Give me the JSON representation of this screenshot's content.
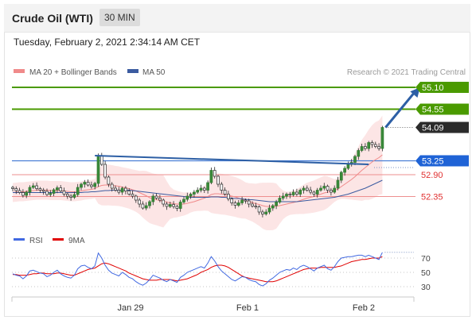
{
  "header": {
    "title": "Crude Oil (WTI)",
    "interval": "30 MIN"
  },
  "datetime": "Tuesday, February 2, 2021 2:34:14 AM CET",
  "legend": {
    "ma20": "MA 20 + Bollinger Bands",
    "ma50": "MA 50"
  },
  "credit": "Research © 2021 Trading Central",
  "colors": {
    "green": "#4a9a00",
    "blue_level": "#1f63d6",
    "red_level": "#e03030",
    "price": "#2a2a2a",
    "ma20": "#f08a8a",
    "ma50": "#3b5ba0",
    "trend": "#2d5fa5",
    "rsi": "#4169e1",
    "rsi_ma": "#e00000"
  },
  "chart_data": [
    {
      "type": "candlestick",
      "x_ticks": [
        "Jan 29",
        "Feb 1",
        "Feb 2"
      ],
      "ylim": [
        51.6,
        55.4
      ],
      "levels": [
        {
          "value": 55.1,
          "label": "55.10",
          "color": "green",
          "style": "flag"
        },
        {
          "value": 54.55,
          "label": "54.55",
          "color": "green",
          "style": "flag"
        },
        {
          "value": 54.09,
          "label": "54.09",
          "color": "dark",
          "style": "flag",
          "note": "last price"
        },
        {
          "value": 53.25,
          "label": "53.25",
          "color": "blue",
          "style": "flag"
        },
        {
          "value": 52.9,
          "label": "52.90",
          "color": "red",
          "style": "text"
        },
        {
          "value": 52.35,
          "label": "52.35",
          "color": "red",
          "style": "text"
        }
      ],
      "close": [
        52.55,
        52.5,
        52.45,
        52.38,
        52.46,
        52.58,
        52.62,
        52.55,
        52.51,
        52.48,
        52.4,
        52.43,
        52.52,
        52.57,
        52.49,
        52.41,
        52.36,
        52.33,
        52.4,
        52.58,
        52.66,
        52.71,
        52.64,
        52.6,
        52.68,
        53.38,
        53.16,
        52.84,
        52.66,
        52.56,
        52.51,
        52.46,
        52.56,
        52.49,
        52.41,
        52.36,
        52.26,
        52.16,
        52.06,
        52.12,
        52.22,
        52.36,
        52.31,
        52.26,
        52.16,
        52.1,
        52.15,
        52.1,
        52.05,
        52.21,
        52.28,
        52.36,
        52.41,
        52.46,
        52.51,
        52.56,
        52.51,
        52.7,
        53.01,
        52.86,
        52.66,
        52.51,
        52.41,
        52.29,
        52.19,
        52.13,
        52.19,
        52.26,
        52.24,
        52.16,
        52.11,
        52.09,
        51.96,
        51.91,
        51.96,
        52.06,
        52.12,
        52.21,
        52.31,
        52.36,
        52.41,
        52.39,
        52.46,
        52.41,
        52.51,
        52.56,
        52.51,
        52.46,
        52.41,
        52.51,
        52.56,
        52.61,
        52.51,
        52.46,
        52.56,
        52.76,
        52.96,
        53.06,
        53.16,
        53.21,
        53.36,
        53.51,
        53.61,
        53.56,
        53.71,
        53.66,
        53.61,
        53.56,
        54.09
      ],
      "ma20": [
        52.45,
        52.46,
        52.47,
        52.47,
        52.48,
        52.49,
        52.5,
        52.51,
        52.51,
        52.51,
        52.51,
        52.5,
        52.5,
        52.5,
        52.5,
        52.49,
        52.48,
        52.47,
        52.47,
        52.48,
        52.49,
        52.51,
        52.52,
        52.53,
        52.55,
        52.6,
        52.63,
        52.64,
        52.64,
        52.63,
        52.62,
        52.61,
        52.59,
        52.57,
        52.55,
        52.52,
        52.49,
        52.45,
        52.41,
        52.37,
        52.32,
        52.29,
        52.27,
        52.25,
        52.23,
        52.21,
        52.19,
        52.17,
        52.16,
        52.16,
        52.16,
        52.18,
        52.2,
        52.22,
        52.25,
        52.28,
        52.31,
        52.35,
        52.4,
        52.42,
        52.42,
        52.41,
        52.4,
        52.38,
        52.36,
        52.34,
        52.31,
        52.28,
        52.25,
        52.22,
        52.2,
        52.17,
        52.15,
        52.12,
        52.1,
        52.1,
        52.1,
        52.11,
        52.12,
        52.14,
        52.16,
        52.18,
        52.2,
        52.22,
        52.25,
        52.28,
        52.31,
        52.33,
        52.35,
        52.38,
        52.41,
        52.44,
        52.46,
        52.48,
        52.5,
        52.54,
        52.6,
        52.66,
        52.72,
        52.78,
        52.85,
        52.93,
        53.01,
        53.08,
        53.15,
        53.22,
        53.28,
        53.33,
        53.4
      ],
      "ma50": [
        52.45,
        52.45,
        52.45,
        52.45,
        52.45,
        52.45,
        52.45,
        52.45,
        52.45,
        52.45,
        52.45,
        52.45,
        52.45,
        52.45,
        52.45,
        52.45,
        52.45,
        52.45,
        52.45,
        52.45,
        52.45,
        52.46,
        52.46,
        52.47,
        52.47,
        52.48,
        52.49,
        52.5,
        52.5,
        52.51,
        52.51,
        52.51,
        52.51,
        52.51,
        52.51,
        52.5,
        52.49,
        52.48,
        52.47,
        52.46,
        52.45,
        52.44,
        52.43,
        52.42,
        52.41,
        52.4,
        52.39,
        52.38,
        52.37,
        52.36,
        52.35,
        52.34,
        52.33,
        52.33,
        52.33,
        52.33,
        52.33,
        52.33,
        52.34,
        52.34,
        52.34,
        52.33,
        52.33,
        52.32,
        52.31,
        52.3,
        52.3,
        52.29,
        52.28,
        52.27,
        52.27,
        52.26,
        52.25,
        52.24,
        52.23,
        52.22,
        52.22,
        52.22,
        52.22,
        52.22,
        52.22,
        52.22,
        52.22,
        52.22,
        52.23,
        52.24,
        52.25,
        52.26,
        52.27,
        52.28,
        52.29,
        52.3,
        52.31,
        52.32,
        52.33,
        52.35,
        52.37,
        52.39,
        52.41,
        52.44,
        52.47,
        52.5,
        52.53,
        52.56,
        52.6,
        52.64,
        52.68,
        52.72,
        52.76
      ],
      "trendline": {
        "from": {
          "x": 24,
          "value": 53.38
        },
        "to": {
          "x": 104,
          "value": 53.16
        }
      },
      "projection": {
        "from": {
          "x": 108,
          "value": 54.09
        },
        "to": {
          "x": 119,
          "value": 55.1
        }
      }
    },
    {
      "type": "line",
      "legend": [
        "RSI",
        "9MA"
      ],
      "y_ticks": [
        70,
        50,
        30
      ],
      "ylim": [
        20,
        80
      ],
      "rsi": [
        48,
        46,
        45,
        41,
        45,
        52,
        53,
        51,
        49,
        48,
        44,
        46,
        50,
        53,
        48,
        45,
        43,
        42,
        46,
        55,
        59,
        60,
        57,
        55,
        59,
        77,
        70,
        60,
        53,
        49,
        47,
        45,
        50,
        47,
        43,
        41,
        37,
        34,
        32,
        35,
        40,
        46,
        44,
        42,
        39,
        37,
        40,
        38,
        36,
        43,
        46,
        50,
        52,
        54,
        56,
        58,
        56,
        63,
        72,
        66,
        58,
        52,
        48,
        44,
        40,
        38,
        41,
        44,
        43,
        40,
        38,
        37,
        33,
        31,
        34,
        39,
        42,
        46,
        50,
        52,
        54,
        53,
        56,
        54,
        58,
        60,
        58,
        55,
        52,
        56,
        58,
        60,
        55,
        53,
        58,
        65,
        70,
        71,
        72,
        72,
        73,
        74,
        74,
        72,
        74,
        72,
        70,
        68,
        78
      ],
      "rsi_ma": [
        47,
        47,
        46,
        46,
        46,
        47,
        48,
        48,
        49,
        49,
        48,
        48,
        48,
        49,
        49,
        48,
        47,
        46,
        46,
        48,
        50,
        52,
        54,
        55,
        56,
        59,
        62,
        63,
        62,
        60,
        58,
        56,
        54,
        52,
        49,
        47,
        45,
        43,
        41,
        40,
        39,
        39,
        39,
        40,
        40,
        40,
        40,
        39,
        38,
        39,
        40,
        41,
        43,
        45,
        47,
        50,
        52,
        54,
        57,
        59,
        60,
        60,
        59,
        57,
        54,
        51,
        48,
        45,
        43,
        42,
        41,
        40,
        39,
        38,
        37,
        37,
        37,
        38,
        40,
        42,
        44,
        46,
        48,
        50,
        52,
        54,
        55,
        56,
        56,
        56,
        57,
        57,
        57,
        57,
        57,
        58,
        59,
        61,
        63,
        65,
        66,
        67,
        68,
        68,
        69,
        70,
        70,
        70,
        72
      ]
    }
  ]
}
